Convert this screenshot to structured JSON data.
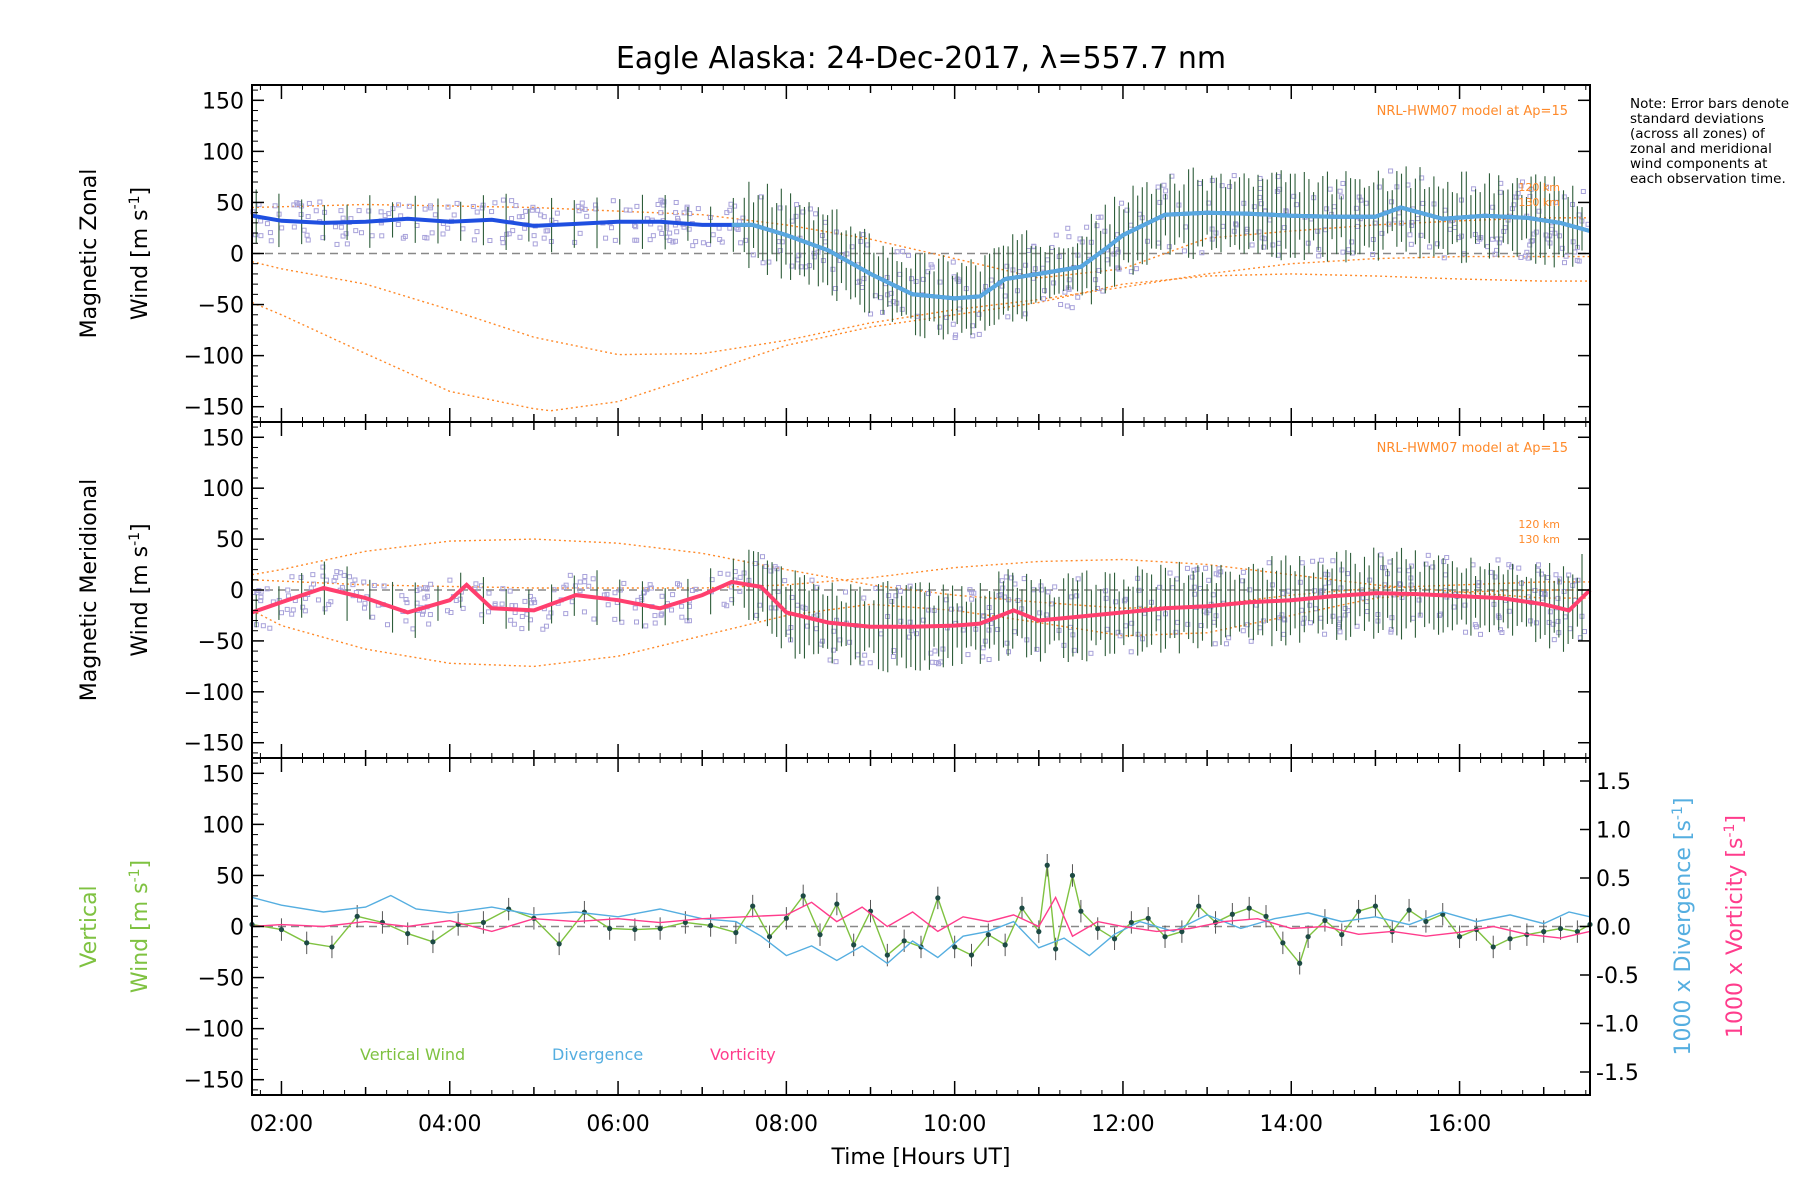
{
  "title": "Eagle Alaska: 24-Dec-2017, λ=557.7 nm",
  "note": "Note: Error bars denote standard deviations (across all zones) of zonal and meridional wind components at each observation time.",
  "colors": {
    "zonal": "#1f4fe0",
    "zonal_fast": "#59a8e0",
    "meridional": "#ff3f6e",
    "model": "#ff8a2a",
    "scatter": "#a8a2da",
    "vertical": "#7fc241",
    "divergence": "#55aee0",
    "vorticity": "#ff3c8c",
    "errorbar": "#2e5d3a"
  },
  "chart_data": [
    {
      "type": "line",
      "panel": "zonal",
      "ylabel_line1": "Magnetic Zonal",
      "ylabel_line2": "Wind [m s",
      "ylabel_sup": "-1",
      "ylabel_end": "]",
      "ylim": [
        -165,
        165
      ],
      "yticks": [
        -150,
        -100,
        -50,
        0,
        50,
        100,
        150
      ],
      "xlim": [
        1.65,
        17.55
      ],
      "xticks": [
        "02:00",
        "04:00",
        "06:00",
        "08:00",
        "10:00",
        "12:00",
        "14:00",
        "16:00"
      ],
      "annotation": "NRL-HWM07 model at Ap=15",
      "model_labels": [
        "120 km",
        "130 km"
      ],
      "series": [
        {
          "name": "",
          "x": [
            1.65,
            2,
            2.5,
            3,
            3.5,
            4,
            4.5,
            5,
            5.5,
            6,
            6.5,
            7,
            7.35,
            7.6,
            8,
            8.5,
            9,
            9.5,
            10,
            10.3,
            10.6,
            11,
            11.5,
            11.8,
            12,
            12.5,
            13,
            13.5,
            14,
            14.5,
            15,
            15.3,
            15.8,
            16.3,
            16.8,
            17.2,
            17.55
          ],
          "y": [
            37,
            32,
            30,
            31,
            34,
            31,
            33,
            27,
            29,
            31,
            31,
            28,
            28,
            28,
            18,
            3,
            -20,
            -40,
            -44,
            -42,
            -25,
            -20,
            -13,
            5,
            18,
            38,
            40,
            39,
            37,
            36,
            36,
            45,
            34,
            37,
            35,
            30,
            22
          ]
        }
      ],
      "model_curves": [
        {
          "x": [
            1.65,
            2,
            3,
            4,
            5,
            6,
            7,
            8,
            9,
            10,
            11,
            12,
            13,
            14,
            15,
            16,
            17,
            17.55
          ],
          "y": [
            -8,
            -15,
            -30,
            -55,
            -82,
            -99,
            -98,
            -85,
            -68,
            -55,
            -45,
            -33,
            -20,
            -10,
            -5,
            -3,
            -3,
            -3
          ]
        },
        {
          "x": [
            1.65,
            2,
            3,
            4,
            5,
            5.2,
            6,
            7,
            8,
            9,
            10,
            11,
            12,
            13,
            14,
            15,
            16,
            17,
            17.55
          ],
          "y": [
            -48,
            -60,
            -98,
            -135,
            -152,
            -154,
            -145,
            -118,
            -90,
            -72,
            -60,
            -48,
            -30,
            -22,
            -20,
            -22,
            -25,
            -27,
            -27
          ]
        },
        {
          "x": [
            1.65,
            3,
            5,
            7,
            8,
            9,
            10,
            11,
            12,
            13,
            14,
            15,
            16,
            17,
            17.55
          ],
          "y": [
            45,
            48,
            45,
            38,
            28,
            14,
            -5,
            -24,
            -15,
            15,
            22,
            28,
            32,
            35,
            35
          ]
        }
      ]
    },
    {
      "type": "line",
      "panel": "meridional",
      "ylabel_line1": "Magnetic Meridional",
      "ylabel_line2": "Wind [m s",
      "ylabel_sup": "-1",
      "ylabel_end": "]",
      "ylim": [
        -165,
        165
      ],
      "yticks": [
        -150,
        -100,
        -50,
        0,
        50,
        100,
        150
      ],
      "xlim": [
        1.65,
        17.55
      ],
      "annotation": "NRL-HWM07 model at Ap=15",
      "model_labels": [
        "120 km",
        "130 km"
      ],
      "series": [
        {
          "name": "",
          "x": [
            1.65,
            2,
            2.5,
            3,
            3.5,
            4,
            4.2,
            4.5,
            5,
            5.5,
            6,
            6.5,
            7,
            7.35,
            7.7,
            8,
            8.5,
            9,
            9.5,
            10,
            10.3,
            10.7,
            11,
            11.5,
            12,
            12.5,
            13,
            13.5,
            14,
            14.5,
            15,
            15.5,
            16,
            16.5,
            17,
            17.3,
            17.55
          ],
          "y": [
            -22,
            -12,
            2,
            -8,
            -22,
            -10,
            5,
            -18,
            -20,
            -5,
            -10,
            -18,
            -5,
            8,
            3,
            -22,
            -32,
            -36,
            -36,
            -35,
            -33,
            -20,
            -30,
            -26,
            -22,
            -18,
            -16,
            -12,
            -10,
            -6,
            -3,
            -4,
            -6,
            -8,
            -14,
            -20,
            0
          ]
        }
      ],
      "model_curves": [
        {
          "x": [
            1.65,
            2,
            3,
            4,
            5,
            6,
            7,
            8,
            9,
            10,
            11,
            12,
            13,
            14,
            15,
            16,
            17,
            17.55
          ],
          "y": [
            15,
            20,
            38,
            48,
            50,
            46,
            36,
            20,
            5,
            -5,
            -12,
            -18,
            -15,
            -5,
            2,
            5,
            8,
            8
          ]
        },
        {
          "x": [
            1.65,
            2,
            3,
            4,
            5,
            6,
            7,
            8,
            9,
            10,
            11,
            12,
            13,
            14,
            15,
            16,
            17,
            17.55
          ],
          "y": [
            -20,
            -35,
            -58,
            -72,
            -75,
            -65,
            -45,
            -25,
            -14,
            -20,
            -32,
            -45,
            -42,
            -25,
            -8,
            -2,
            0,
            0
          ]
        },
        {
          "x": [
            1.65,
            3,
            5,
            7,
            8,
            9,
            10,
            11,
            12,
            13,
            14,
            15,
            16,
            17,
            17.55
          ],
          "y": [
            10,
            5,
            2,
            2,
            5,
            12,
            22,
            28,
            30,
            25,
            15,
            5,
            -2,
            -8,
            -8
          ]
        }
      ]
    },
    {
      "type": "line",
      "panel": "vertical",
      "ylabel_line1": "Vertical",
      "ylabel_line2": "Wind [m s",
      "ylabel_sup": "-1",
      "ylabel_end": "]",
      "ylim": [
        -165,
        165
      ],
      "yticks": [
        -150,
        -100,
        -50,
        0,
        50,
        100,
        150
      ],
      "y2lim": [
        -1.5,
        1.5
      ],
      "y2ticks": [
        "-1.5",
        "-1.0",
        "-0.5",
        "0.0",
        "0.5",
        "1.0",
        "1.5"
      ],
      "y2label_div": "1000 x Divergence [s",
      "y2label_vor": "1000 x Vorticity [s",
      "y2label_sup": "-1",
      "y2label_end": "]",
      "xlim": [
        1.65,
        17.55
      ],
      "xticks": [
        "02:00",
        "04:00",
        "06:00",
        "08:00",
        "10:00",
        "12:00",
        "14:00",
        "16:00"
      ],
      "xlabel": "Time [Hours UT]",
      "legend": [
        "Vertical Wind",
        "Divergence",
        "Vorticity"
      ],
      "series": [
        {
          "name": "Vertical Wind",
          "x": [
            1.65,
            2,
            2.3,
            2.6,
            2.9,
            3.2,
            3.5,
            3.8,
            4.1,
            4.4,
            4.7,
            5,
            5.3,
            5.6,
            5.9,
            6.2,
            6.5,
            6.8,
            7.1,
            7.4,
            7.6,
            7.8,
            8,
            8.2,
            8.4,
            8.6,
            8.8,
            9,
            9.2,
            9.4,
            9.6,
            9.8,
            10,
            10.2,
            10.4,
            10.6,
            10.8,
            11,
            11.1,
            11.2,
            11.4,
            11.5,
            11.7,
            11.9,
            12.1,
            12.3,
            12.5,
            12.7,
            12.9,
            13.1,
            13.3,
            13.5,
            13.7,
            13.9,
            14.1,
            14.2,
            14.4,
            14.6,
            14.8,
            15,
            15.2,
            15.4,
            15.6,
            15.8,
            16,
            16.2,
            16.4,
            16.6,
            16.8,
            17,
            17.2,
            17.4,
            17.55
          ],
          "y": [
            2,
            -3,
            -16,
            -20,
            10,
            4,
            -7,
            -15,
            2,
            4,
            17,
            8,
            -17,
            14,
            -2,
            -3,
            -2,
            4,
            1,
            -6,
            20,
            -10,
            8,
            30,
            -8,
            22,
            -18,
            15,
            -28,
            -14,
            -20,
            28,
            -20,
            -28,
            -8,
            -18,
            18,
            -5,
            60,
            -22,
            50,
            15,
            -2,
            -12,
            4,
            8,
            -10,
            -5,
            20,
            4,
            12,
            18,
            10,
            -16,
            -36,
            -10,
            6,
            -8,
            15,
            20,
            -5,
            16,
            5,
            12,
            -10,
            -3,
            -20,
            -12,
            -8,
            -5,
            -2,
            -5,
            2
          ]
        },
        {
          "name": "Divergence",
          "x": [
            1.65,
            2,
            2.5,
            3,
            3.3,
            3.6,
            4,
            4.5,
            5,
            5.5,
            6,
            6.5,
            7,
            7.4,
            7.7,
            8,
            8.3,
            8.6,
            8.9,
            9.2,
            9.5,
            9.8,
            10.1,
            10.4,
            10.7,
            11,
            11.3,
            11.6,
            11.9,
            12.2,
            12.6,
            13,
            13.4,
            13.8,
            14.2,
            14.6,
            15,
            15.4,
            15.8,
            16.2,
            16.6,
            17,
            17.3,
            17.55
          ],
          "y": [
            0.3,
            0.22,
            0.15,
            0.2,
            0.32,
            0.18,
            0.14,
            0.2,
            0.12,
            0.15,
            0.1,
            0.18,
            0.08,
            0.05,
            -0.1,
            -0.3,
            -0.2,
            -0.35,
            -0.2,
            -0.38,
            -0.15,
            -0.32,
            -0.1,
            -0.05,
            0.05,
            -0.22,
            -0.12,
            -0.3,
            -0.08,
            0.05,
            -0.05,
            0.12,
            -0.02,
            0.08,
            0.14,
            0.05,
            0.1,
            0.02,
            0.15,
            0.05,
            0.12,
            0.03,
            0.15,
            0.1
          ]
        },
        {
          "name": "Vorticity",
          "x": [
            1.65,
            2,
            2.5,
            3,
            3.5,
            4,
            4.5,
            5,
            5.5,
            6,
            6.5,
            7,
            7.5,
            8,
            8.3,
            8.6,
            8.9,
            9.2,
            9.5,
            9.8,
            10.1,
            10.4,
            10.7,
            11,
            11.2,
            11.4,
            11.7,
            12,
            12.4,
            12.8,
            13.2,
            13.6,
            14,
            14.4,
            14.8,
            15.2,
            15.6,
            16,
            16.4,
            16.8,
            17.2,
            17.55
          ],
          "y": [
            0.0,
            0.02,
            0.0,
            0.05,
            0.0,
            0.06,
            -0.05,
            0.08,
            0.05,
            0.08,
            0.04,
            0.08,
            0.1,
            0.12,
            0.25,
            0.05,
            0.2,
            0.0,
            0.15,
            -0.05,
            0.1,
            0.05,
            0.12,
            0.0,
            0.3,
            -0.1,
            0.05,
            0.0,
            -0.05,
            -0.02,
            0.05,
            0.08,
            -0.02,
            0.0,
            -0.08,
            -0.05,
            -0.1,
            -0.06,
            0.0,
            -0.08,
            -0.12,
            -0.05
          ]
        }
      ]
    }
  ]
}
